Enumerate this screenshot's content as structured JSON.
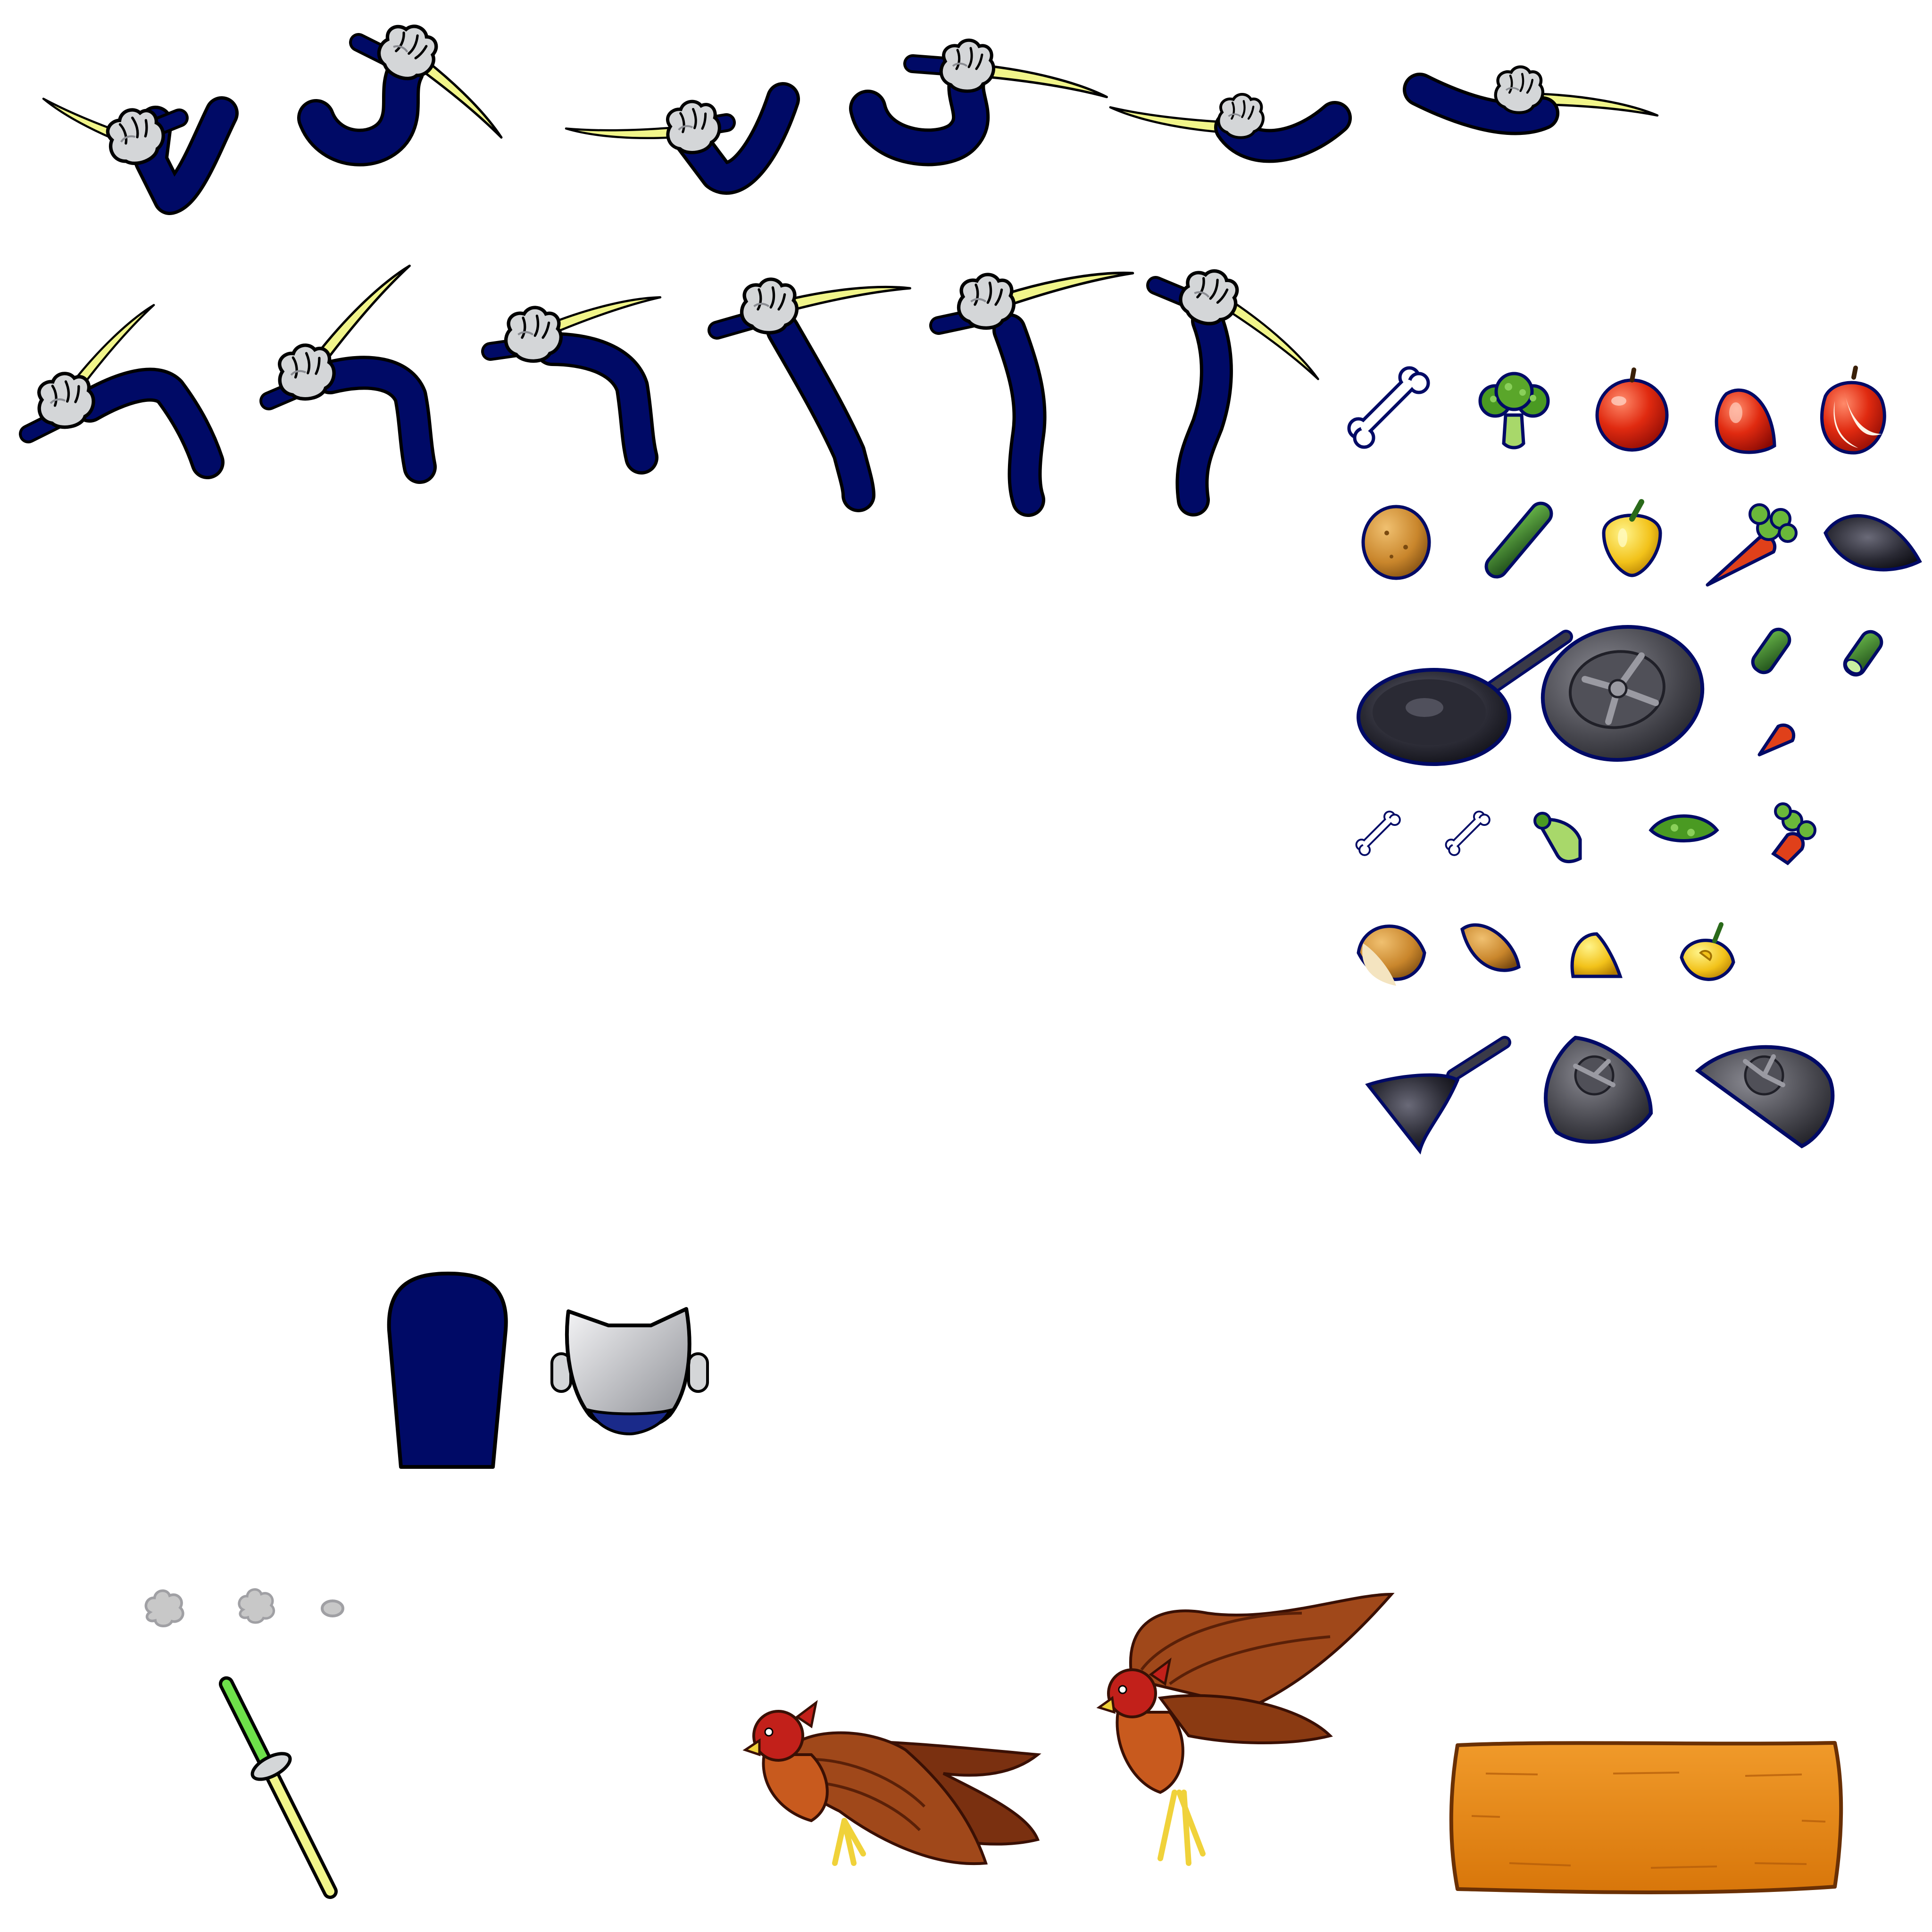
{
  "sheet": {
    "colors": {
      "background": "#ffffff",
      "outline": "#000000",
      "sleeve": "#000a66",
      "glove": "#d4d6d8",
      "blade": "#f1f58a",
      "apple": "#d62a10",
      "broccoli": "#5aa62a",
      "potato": "#c9862c",
      "cucumber": "#2f7a2a",
      "pepper": "#f2c21a",
      "carrot": "#e0401a",
      "pan": "#1c1c22",
      "tire": "#3a3a40",
      "smoke": "#c8c8c8",
      "staff_tip": "#6ee04a",
      "hawk": "#8a3a12",
      "hawk_head": "#c2201a",
      "talon": "#f0d23a",
      "plank": "#e0820a"
    },
    "arm_frames_row1": [
      "arm-swing-frame-1",
      "arm-swing-frame-2",
      "arm-swing-frame-3",
      "arm-swing-frame-4",
      "arm-swing-frame-5",
      "arm-swing-frame-6"
    ],
    "arm_frames_row2": [
      "arm-raise-frame-1",
      "arm-raise-frame-2",
      "arm-raise-frame-3",
      "arm-raise-frame-4",
      "arm-raise-frame-5",
      "arm-raise-frame-6"
    ],
    "items_row1": [
      "bone-icon",
      "broccoli-icon",
      "apple-icon",
      "apple-half-icon",
      "apple-slice-icon"
    ],
    "items_row2": [
      "potato-icon",
      "cucumber-icon",
      "yellow-pepper-icon",
      "carrot-icon",
      "pan-fragment-icon"
    ],
    "items_row3": [
      "frying-pan-icon",
      "tire-icon",
      "cucumber-piece-icon",
      "cucumber-slice-icon",
      "carrot-piece-icon"
    ],
    "items_row4": [
      "bone-piece-icon",
      "bone-piece-small-icon",
      "broccoli-stem-icon",
      "broccoli-floret-icon",
      "carrot-top-icon"
    ],
    "items_row5": [
      "potato-half-icon",
      "potato-piece-icon",
      "pepper-half-icon",
      "pepper-slice-icon"
    ],
    "items_row6": [
      "pan-handle-piece-icon",
      "tire-half-icon",
      "tire-quarter-icon"
    ],
    "character_parts": [
      "body-torso-part",
      "head-back-part"
    ],
    "effects": [
      "smoke-puff-large-icon",
      "smoke-puff-medium-icon",
      "smoke-puff-small-icon",
      "staff-weapon-icon"
    ],
    "creatures": [
      "hawk-perched-sprite",
      "hawk-wings-raised-sprite"
    ],
    "panels": [
      "wooden-plank-sign"
    ]
  }
}
